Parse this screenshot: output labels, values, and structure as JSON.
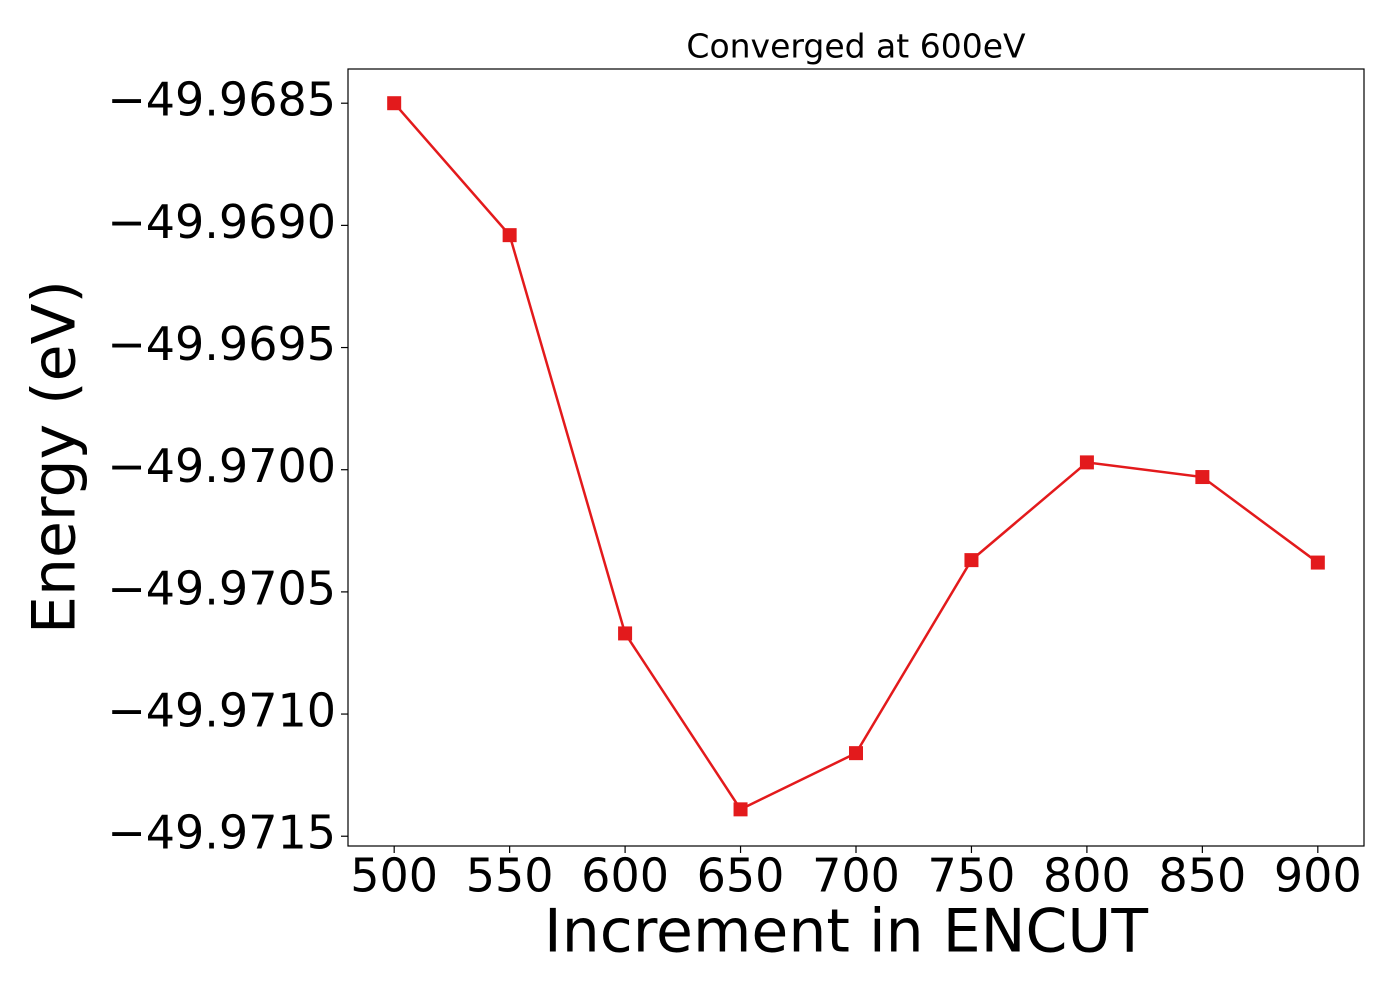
{
  "chart_data": {
    "type": "line",
    "title": "Converged at 600eV",
    "x_label": "Increment in ENCUT",
    "y_label": "Energy (eV)",
    "x": [
      500,
      550,
      600,
      650,
      700,
      750,
      800,
      850,
      900
    ],
    "series": [
      {
        "color": "#e31a1c",
        "marker": "square",
        "values": [
          -49.9685,
          -49.96904,
          -49.97067,
          -49.97139,
          -49.97116,
          -49.97037,
          -49.96997,
          -49.97003,
          -49.97038
        ]
      }
    ],
    "xlim": [
      480,
      920
    ],
    "xticks": [
      500,
      550,
      600,
      650,
      700,
      750,
      800,
      850,
      900
    ],
    "ylim": [
      -49.97154,
      -49.96836
    ],
    "yticks": [
      {
        "value": -49.9685,
        "label": "−49.9685"
      },
      {
        "value": -49.969,
        "label": "−49.9690"
      },
      {
        "value": -49.9695,
        "label": "−49.9695"
      },
      {
        "value": -49.97,
        "label": "−49.9700"
      },
      {
        "value": -49.9705,
        "label": "−49.9705"
      },
      {
        "value": -49.971,
        "label": "−49.9710"
      },
      {
        "value": -49.9715,
        "label": "−49.9715"
      }
    ],
    "grid": false
  }
}
